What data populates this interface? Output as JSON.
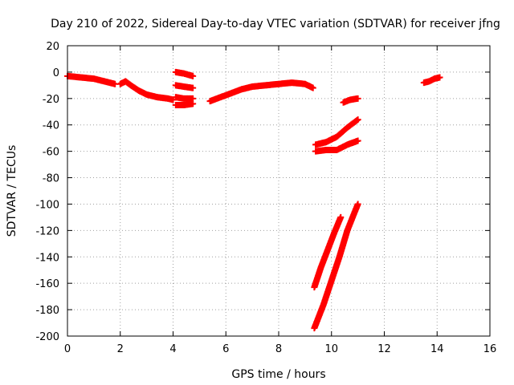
{
  "chart_data": {
    "type": "scatter",
    "title": "Day 210 of 2022, Sidereal Day-to-day VTEC variation (SDTVAR) for receiver jfng",
    "xlabel": "GPS time / hours",
    "ylabel": "SDTVAR / TECUs",
    "xlim": [
      0,
      16
    ],
    "ylim": [
      -200,
      20
    ],
    "x_ticks": [
      0,
      2,
      4,
      6,
      8,
      10,
      12,
      14,
      16
    ],
    "y_ticks": [
      20,
      0,
      -20,
      -40,
      -60,
      -80,
      -100,
      -120,
      -140,
      -160,
      -180,
      -200
    ],
    "grid": true,
    "marker": "+",
    "color": "#ff0000",
    "segments": [
      {
        "x": [
          0.0,
          0.5,
          1.0,
          1.4,
          1.8
        ],
        "y": [
          -3,
          -4,
          -5,
          -7,
          -9
        ]
      },
      {
        "x": [
          2.0,
          2.2,
          2.4,
          2.7,
          3.0,
          3.4,
          3.8,
          4.0
        ],
        "y": [
          -9,
          -7,
          -10,
          -14,
          -17,
          -19,
          -20,
          -21
        ]
      },
      {
        "x": [
          4.1,
          4.4,
          4.75
        ],
        "y": [
          0,
          -1,
          -3
        ]
      },
      {
        "x": [
          4.1,
          4.4,
          4.75
        ],
        "y": [
          -10,
          -11,
          -12
        ]
      },
      {
        "x": [
          4.1,
          4.4,
          4.75
        ],
        "y": [
          -19,
          -20,
          -20
        ]
      },
      {
        "x": [
          4.1,
          4.4,
          4.75
        ],
        "y": [
          -25,
          -25,
          -24
        ]
      },
      {
        "x": [
          5.4,
          5.8,
          6.2,
          6.6,
          7.0,
          7.5,
          8.0,
          8.5,
          9.0,
          9.3
        ],
        "y": [
          -22,
          -19,
          -16,
          -13,
          -11,
          -10,
          -9,
          -8,
          -9,
          -12
        ]
      },
      {
        "x": [
          9.4,
          9.8,
          10.2,
          10.6,
          11.0
        ],
        "y": [
          -55,
          -53,
          -49,
          -42,
          -36
        ]
      },
      {
        "x": [
          9.4,
          9.8,
          10.2,
          10.6,
          11.0
        ],
        "y": [
          -60,
          -59,
          -59,
          -55,
          -52
        ]
      },
      {
        "x": [
          10.45,
          10.7,
          11.0
        ],
        "y": [
          -23,
          -21,
          -20
        ]
      },
      {
        "x": [
          9.35,
          9.6,
          9.85,
          10.1,
          10.35
        ],
        "y": [
          -163,
          -148,
          -135,
          -122,
          -110
        ]
      },
      {
        "x": [
          9.35,
          9.7,
          10.0,
          10.3,
          10.6,
          11.0
        ],
        "y": [
          -194,
          -176,
          -158,
          -140,
          -120,
          -100
        ]
      },
      {
        "x": [
          13.5,
          13.7,
          13.9,
          14.1
        ],
        "y": [
          -8,
          -7,
          -5,
          -4
        ]
      }
    ]
  }
}
